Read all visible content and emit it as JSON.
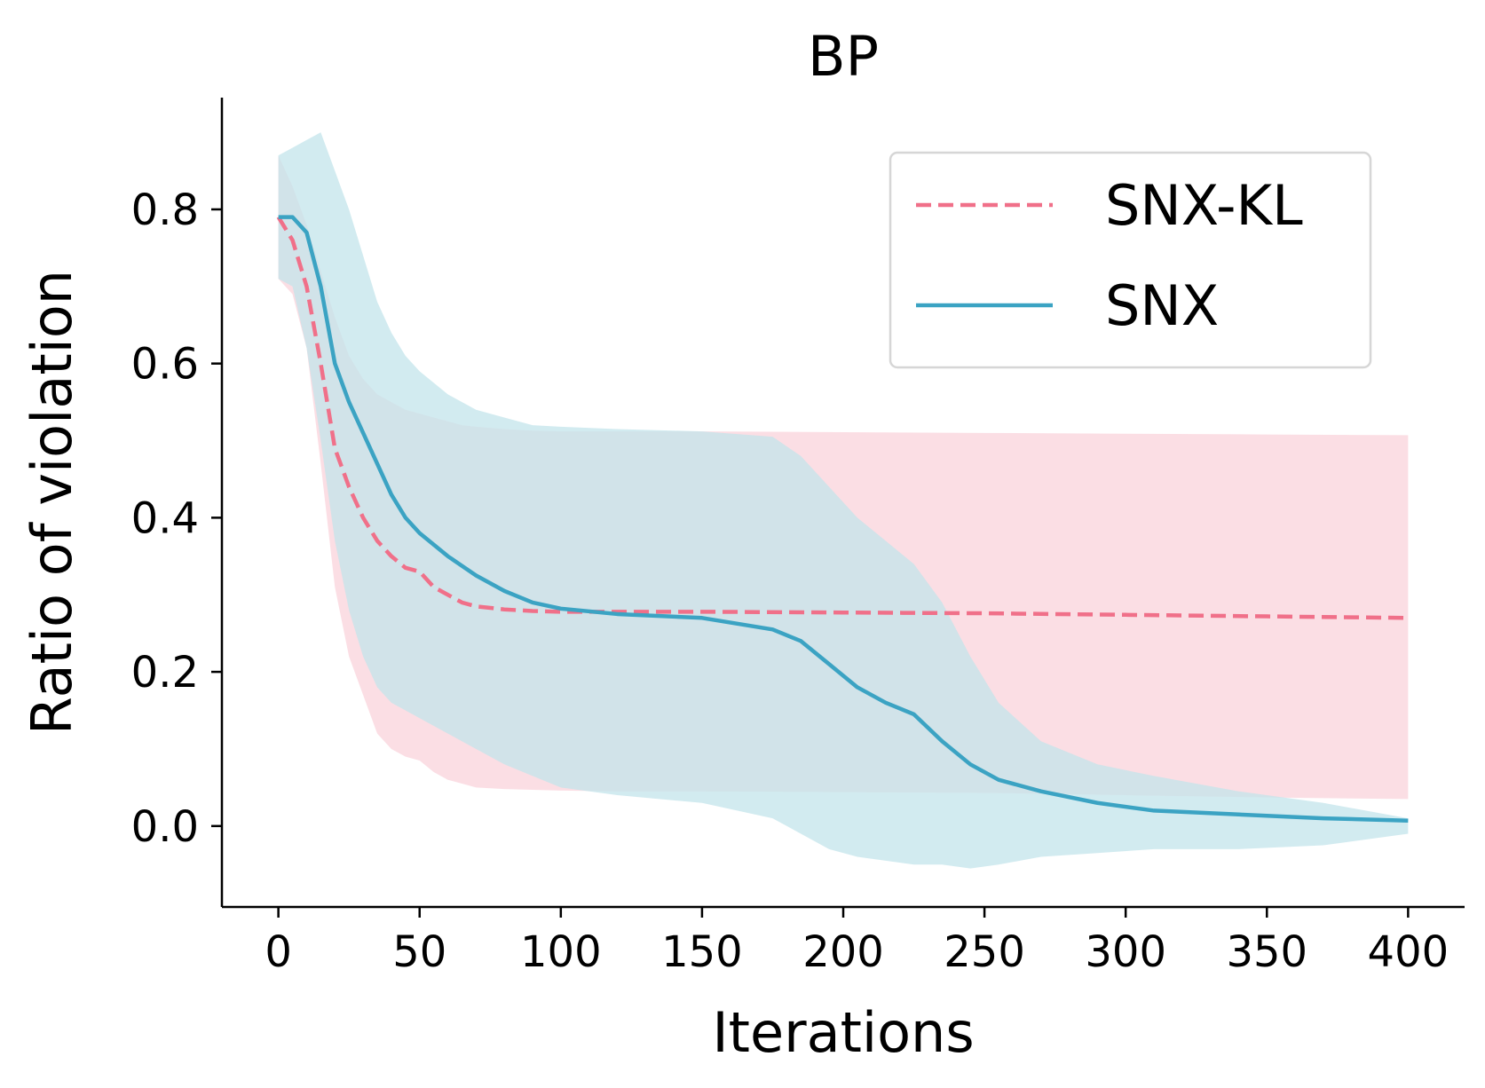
{
  "chart_data": {
    "type": "line",
    "title": "BP",
    "xlabel": "Iterations",
    "ylabel": "Ratio of violation",
    "xlim": [
      -20,
      420
    ],
    "ylim": [
      -0.105,
      0.945
    ],
    "xticks": [
      0,
      50,
      100,
      150,
      200,
      250,
      300,
      350,
      400
    ],
    "yticks": [
      0.0,
      0.2,
      0.4,
      0.6,
      0.8
    ],
    "xtick_labels": [
      "0",
      "50",
      "100",
      "150",
      "200",
      "250",
      "300",
      "350",
      "400"
    ],
    "ytick_labels": [
      "0.0",
      "0.2",
      "0.4",
      "0.6",
      "0.8"
    ],
    "grid": false,
    "legend_position": "upper right",
    "series": [
      {
        "name": "SNX-KL",
        "style": "dashed",
        "color": "#F07089",
        "band_color": "#FAD3DB",
        "x": [
          0,
          5,
          10,
          15,
          20,
          25,
          30,
          35,
          40,
          45,
          50,
          55,
          60,
          65,
          70,
          80,
          90,
          100,
          120,
          150,
          200,
          250,
          300,
          350,
          400
        ],
        "mean": [
          0.79,
          0.76,
          0.7,
          0.6,
          0.49,
          0.44,
          0.4,
          0.37,
          0.35,
          0.335,
          0.33,
          0.31,
          0.3,
          0.29,
          0.285,
          0.281,
          0.279,
          0.278,
          0.278,
          0.278,
          0.277,
          0.276,
          0.274,
          0.272,
          0.27
        ],
        "upper": [
          0.87,
          0.83,
          0.78,
          0.72,
          0.66,
          0.61,
          0.58,
          0.56,
          0.55,
          0.54,
          0.535,
          0.53,
          0.525,
          0.52,
          0.518,
          0.515,
          0.513,
          0.512,
          0.512,
          0.512,
          0.511,
          0.51,
          0.509,
          0.508,
          0.507
        ],
        "lower": [
          0.71,
          0.69,
          0.62,
          0.47,
          0.31,
          0.22,
          0.17,
          0.12,
          0.1,
          0.09,
          0.085,
          0.07,
          0.06,
          0.055,
          0.05,
          0.048,
          0.047,
          0.046,
          0.045,
          0.045,
          0.044,
          0.043,
          0.04,
          0.037,
          0.035
        ]
      },
      {
        "name": "SNX",
        "style": "solid",
        "color": "#3BA3C3",
        "band_color": "#C3E4EB",
        "x": [
          0,
          5,
          10,
          15,
          20,
          25,
          30,
          35,
          40,
          45,
          50,
          60,
          70,
          80,
          90,
          100,
          120,
          150,
          175,
          185,
          195,
          205,
          215,
          225,
          235,
          245,
          255,
          270,
          290,
          310,
          340,
          370,
          400
        ],
        "mean": [
          0.79,
          0.79,
          0.77,
          0.7,
          0.6,
          0.55,
          0.51,
          0.47,
          0.43,
          0.4,
          0.38,
          0.35,
          0.325,
          0.305,
          0.29,
          0.282,
          0.275,
          0.27,
          0.255,
          0.24,
          0.21,
          0.18,
          0.16,
          0.145,
          0.11,
          0.08,
          0.06,
          0.045,
          0.03,
          0.02,
          0.015,
          0.01,
          0.007
        ],
        "upper": [
          0.87,
          0.88,
          0.89,
          0.9,
          0.85,
          0.8,
          0.74,
          0.68,
          0.64,
          0.61,
          0.59,
          0.56,
          0.54,
          0.53,
          0.52,
          0.518,
          0.515,
          0.512,
          0.505,
          0.48,
          0.44,
          0.4,
          0.37,
          0.34,
          0.29,
          0.22,
          0.16,
          0.11,
          0.08,
          0.065,
          0.045,
          0.03,
          0.01
        ],
        "lower": [
          0.71,
          0.7,
          0.62,
          0.5,
          0.37,
          0.28,
          0.22,
          0.18,
          0.16,
          0.15,
          0.14,
          0.12,
          0.1,
          0.08,
          0.065,
          0.05,
          0.04,
          0.03,
          0.01,
          -0.01,
          -0.03,
          -0.04,
          -0.045,
          -0.05,
          -0.05,
          -0.055,
          -0.05,
          -0.04,
          -0.035,
          -0.03,
          -0.03,
          -0.025,
          -0.01
        ]
      }
    ]
  }
}
